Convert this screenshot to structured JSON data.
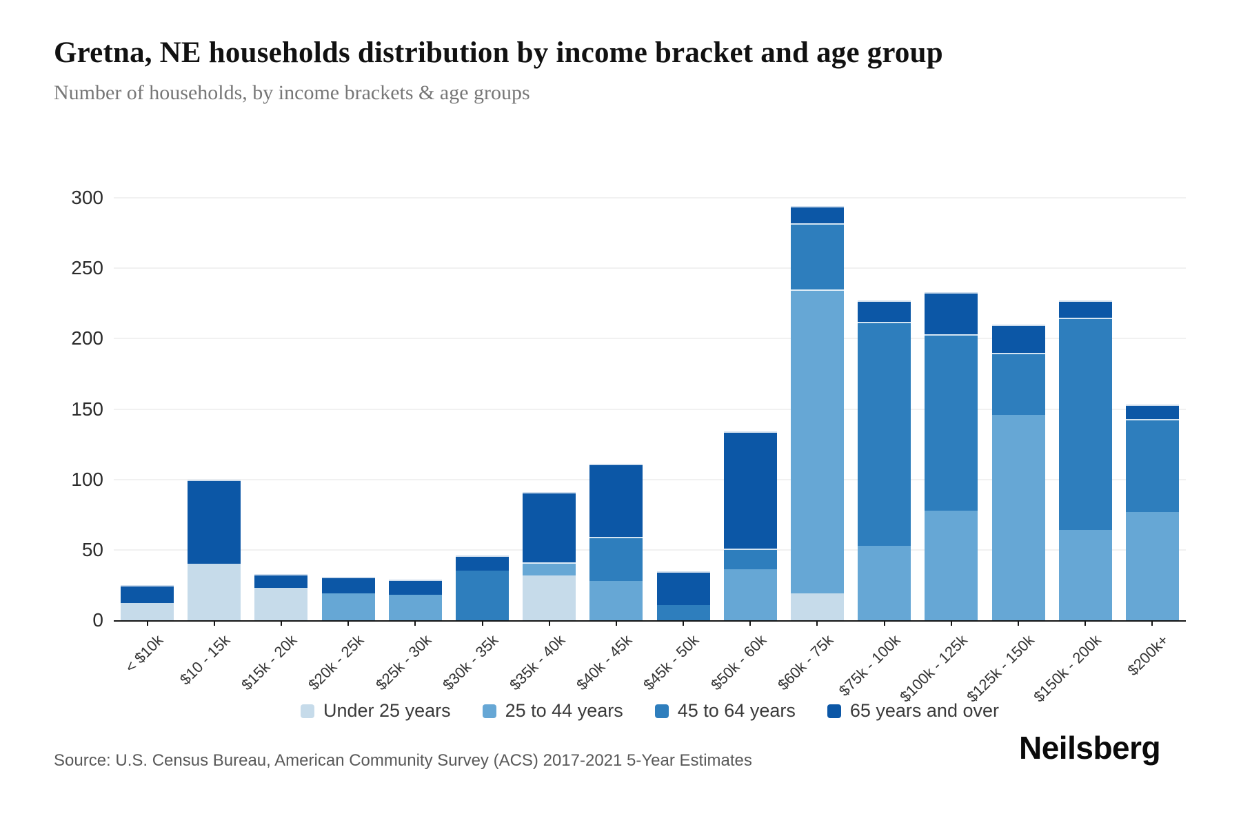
{
  "header": {
    "title": "Gretna, NE households distribution by income bracket and age group",
    "subtitle": "Number of households, by income brackets & age groups"
  },
  "footer": {
    "source": "Source: U.S. Census Bureau, American Community Survey (ACS) 2017-2021 5-Year Estimates",
    "brand": "Neilsberg"
  },
  "chart_data": {
    "type": "bar",
    "stacked": true,
    "title": "Gretna, NE households distribution by income bracket and age group",
    "xlabel": "",
    "ylabel": "",
    "ylim": [
      0,
      300
    ],
    "yticks": [
      0,
      50,
      100,
      150,
      200,
      250,
      300
    ],
    "grid": true,
    "legend_position": "bottom",
    "x_label_rotation": -45,
    "categories": [
      "< $10k",
      "$10 - 15k",
      "$15k - 20k",
      "$20k - 25k",
      "$25k - 30k",
      "$30k - 35k",
      "$35k - 40k",
      "$40k - 45k",
      "$45k - 50k",
      "$50k - 60k",
      "$60k - 75k",
      "$75k - 100k",
      "$100k - 125k",
      "$125k - 150k",
      "$150k - 200k",
      "$200k+"
    ],
    "series": [
      {
        "name": "Under 25 years",
        "color": "#c6dbea",
        "values": [
          12,
          40,
          23,
          0,
          0,
          0,
          32,
          0,
          0,
          0,
          19,
          0,
          0,
          0,
          0,
          0
        ]
      },
      {
        "name": "25 to 44 years",
        "color": "#66a7d5",
        "values": [
          0,
          0,
          0,
          19,
          18,
          0,
          9,
          28,
          0,
          36,
          216,
          53,
          78,
          146,
          64,
          77
        ]
      },
      {
        "name": "45 to 64 years",
        "color": "#2e7ebd",
        "values": [
          0,
          0,
          0,
          0,
          0,
          35,
          0,
          31,
          11,
          15,
          47,
          159,
          125,
          44,
          151,
          66
        ]
      },
      {
        "name": "65 years and over",
        "color": "#0c57a6",
        "values": [
          13,
          60,
          10,
          12,
          11,
          11,
          50,
          52,
          24,
          83,
          12,
          15,
          30,
          20,
          12,
          10
        ]
      }
    ],
    "totals": [
      25,
      100,
      33,
      31,
      29,
      46,
      91,
      111,
      35,
      134,
      294,
      227,
      233,
      210,
      227,
      153
    ]
  }
}
